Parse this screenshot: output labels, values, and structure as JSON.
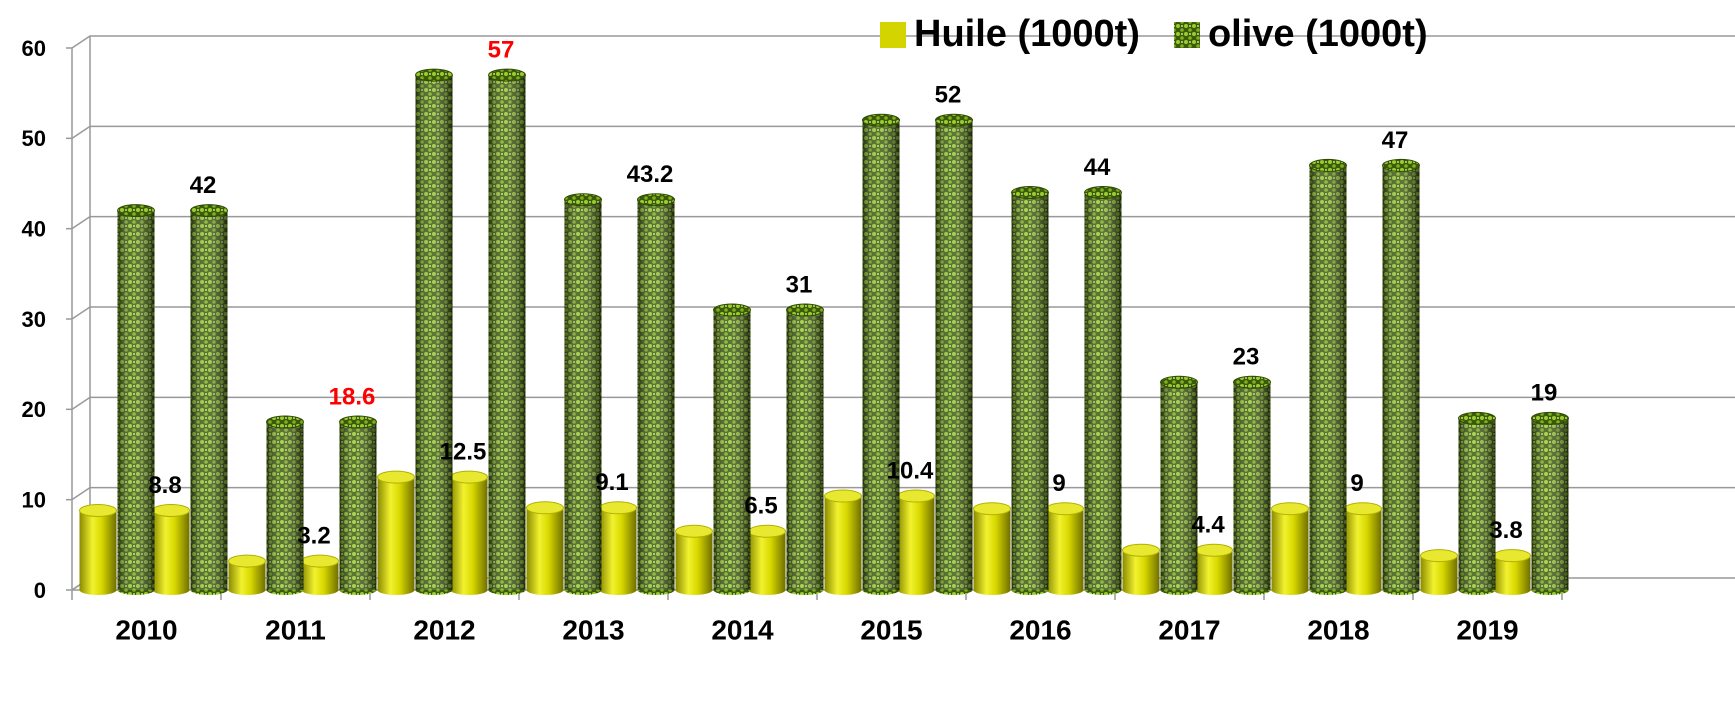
{
  "chart_data": {
    "type": "bar",
    "categories": [
      "2010",
      "2011",
      "2012",
      "2013",
      "2014",
      "2015",
      "2016",
      "2017",
      "2018",
      "2019"
    ],
    "series": [
      {
        "name": "Huile (1000t)",
        "color": "#d4d400",
        "values": [
          8.8,
          3.2,
          12.5,
          9.1,
          6.5,
          10.4,
          9,
          4.4,
          9,
          3.8
        ],
        "label_colors": [
          "#000000",
          "#000000",
          "#000000",
          "#000000",
          "#000000",
          "#000000",
          "#000000",
          "#000000",
          "#000000",
          "#000000"
        ]
      },
      {
        "name": "olive (1000t)",
        "color": "#4f7a10",
        "values": [
          42,
          18.6,
          57,
          43.2,
          31,
          52,
          44,
          23,
          47,
          19
        ],
        "label_colors": [
          "#000000",
          "#ff0000",
          "#ff0000",
          "#000000",
          "#000000",
          "#000000",
          "#000000",
          "#000000",
          "#000000",
          "#000000"
        ]
      }
    ],
    "ylim": [
      0,
      60
    ],
    "yticks": [
      0,
      10,
      20,
      30,
      40,
      50,
      60
    ],
    "grid": true,
    "legend": "top-right"
  }
}
